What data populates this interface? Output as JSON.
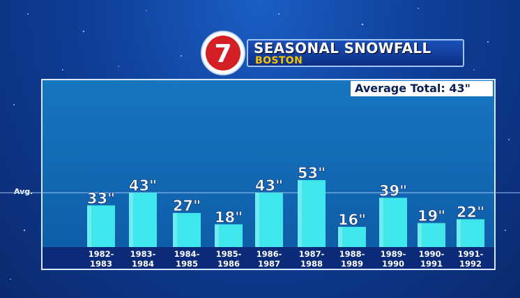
{
  "header": {
    "logo_text": "7",
    "title": "SEASONAL SNOWFALL",
    "subtitle": "BOSTON"
  },
  "average_badge": "Average Total: 43\"",
  "average_line_label": "Avg.",
  "colors": {
    "bar": "#3fe6ec",
    "panel": "#1776c0",
    "accent": "#f5c400",
    "logo_red": "#d41f26"
  },
  "chart_data": {
    "type": "bar",
    "title": "SEASONAL SNOWFALL",
    "subtitle": "BOSTON",
    "categories": [
      [
        "1982-",
        "1983"
      ],
      [
        "1983-",
        "1984"
      ],
      [
        "1984-",
        "1985"
      ],
      [
        "1985-",
        "1986"
      ],
      [
        "1986-",
        "1987"
      ],
      [
        "1987-",
        "1988"
      ],
      [
        "1988-",
        "1989"
      ],
      [
        "1989-",
        "1990"
      ],
      [
        "1990-",
        "1991"
      ],
      [
        "1991-",
        "1992"
      ]
    ],
    "values": [
      33,
      43,
      27,
      18,
      43,
      53,
      16,
      39,
      19,
      22
    ],
    "value_labels": [
      "33\"",
      "43\"",
      "27\"",
      "18\"",
      "43\"",
      "53\"",
      "16\"",
      "39\"",
      "19\"",
      "22\""
    ],
    "units": "inches",
    "average": 43,
    "ylim": [
      0,
      60
    ],
    "grid": false,
    "legend": "none"
  }
}
